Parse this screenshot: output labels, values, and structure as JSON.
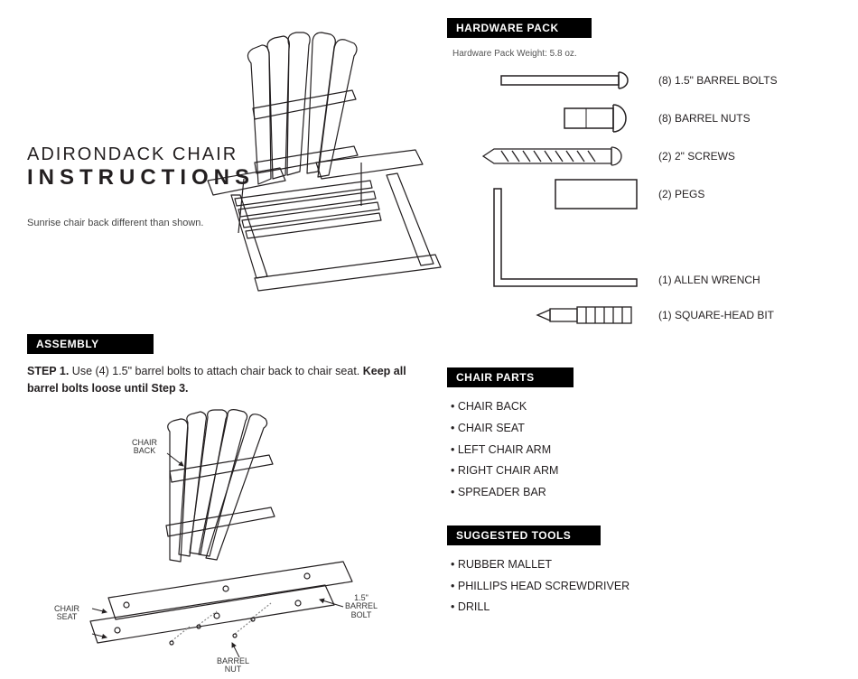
{
  "title": {
    "line1": "ADIRONDACK CHAIR",
    "line2": "INSTRUCTIONS"
  },
  "note": "Sunrise chair back different than shown.",
  "sections": {
    "assembly": "ASSEMBLY",
    "hardware": "HARDWARE PACK",
    "chair_parts": "CHAIR PARTS",
    "tools": "SUGGESTED TOOLS"
  },
  "hardware_weight": "Hardware Pack Weight: 5.8 oz.",
  "step1": {
    "label": "STEP 1.",
    "text": " Use (4) 1.5\" barrel bolts to attach chair back to chair seat. ",
    "bold": "Keep all barrel bolts loose until Step 3."
  },
  "hardware": [
    {
      "label": "(8) 1.5\" BARREL BOLTS"
    },
    {
      "label": "(8) BARREL NUTS"
    },
    {
      "label": "(2) 2\" SCREWS"
    },
    {
      "label": "(2) PEGS"
    },
    {
      "label": "(1) ALLEN WRENCH"
    },
    {
      "label": "(1) SQUARE-HEAD BIT"
    }
  ],
  "chair_parts": [
    "CHAIR BACK",
    "CHAIR SEAT",
    "LEFT CHAIR ARM",
    "RIGHT CHAIR ARM",
    "SPREADER BAR"
  ],
  "tools": [
    "RUBBER MALLET",
    "PHILLIPS HEAD SCREWDRIVER",
    "DRILL"
  ],
  "diagram_labels": {
    "chair_back": "CHAIR\nBACK",
    "chair_seat": "CHAIR\nSEAT",
    "barrel_bolt": "1.5\"\nBARREL\nBOLT",
    "barrel_nut": "BARREL\nNUT"
  },
  "colors": {
    "black": "#000000",
    "stroke": "#231f20",
    "light": "#888888"
  }
}
